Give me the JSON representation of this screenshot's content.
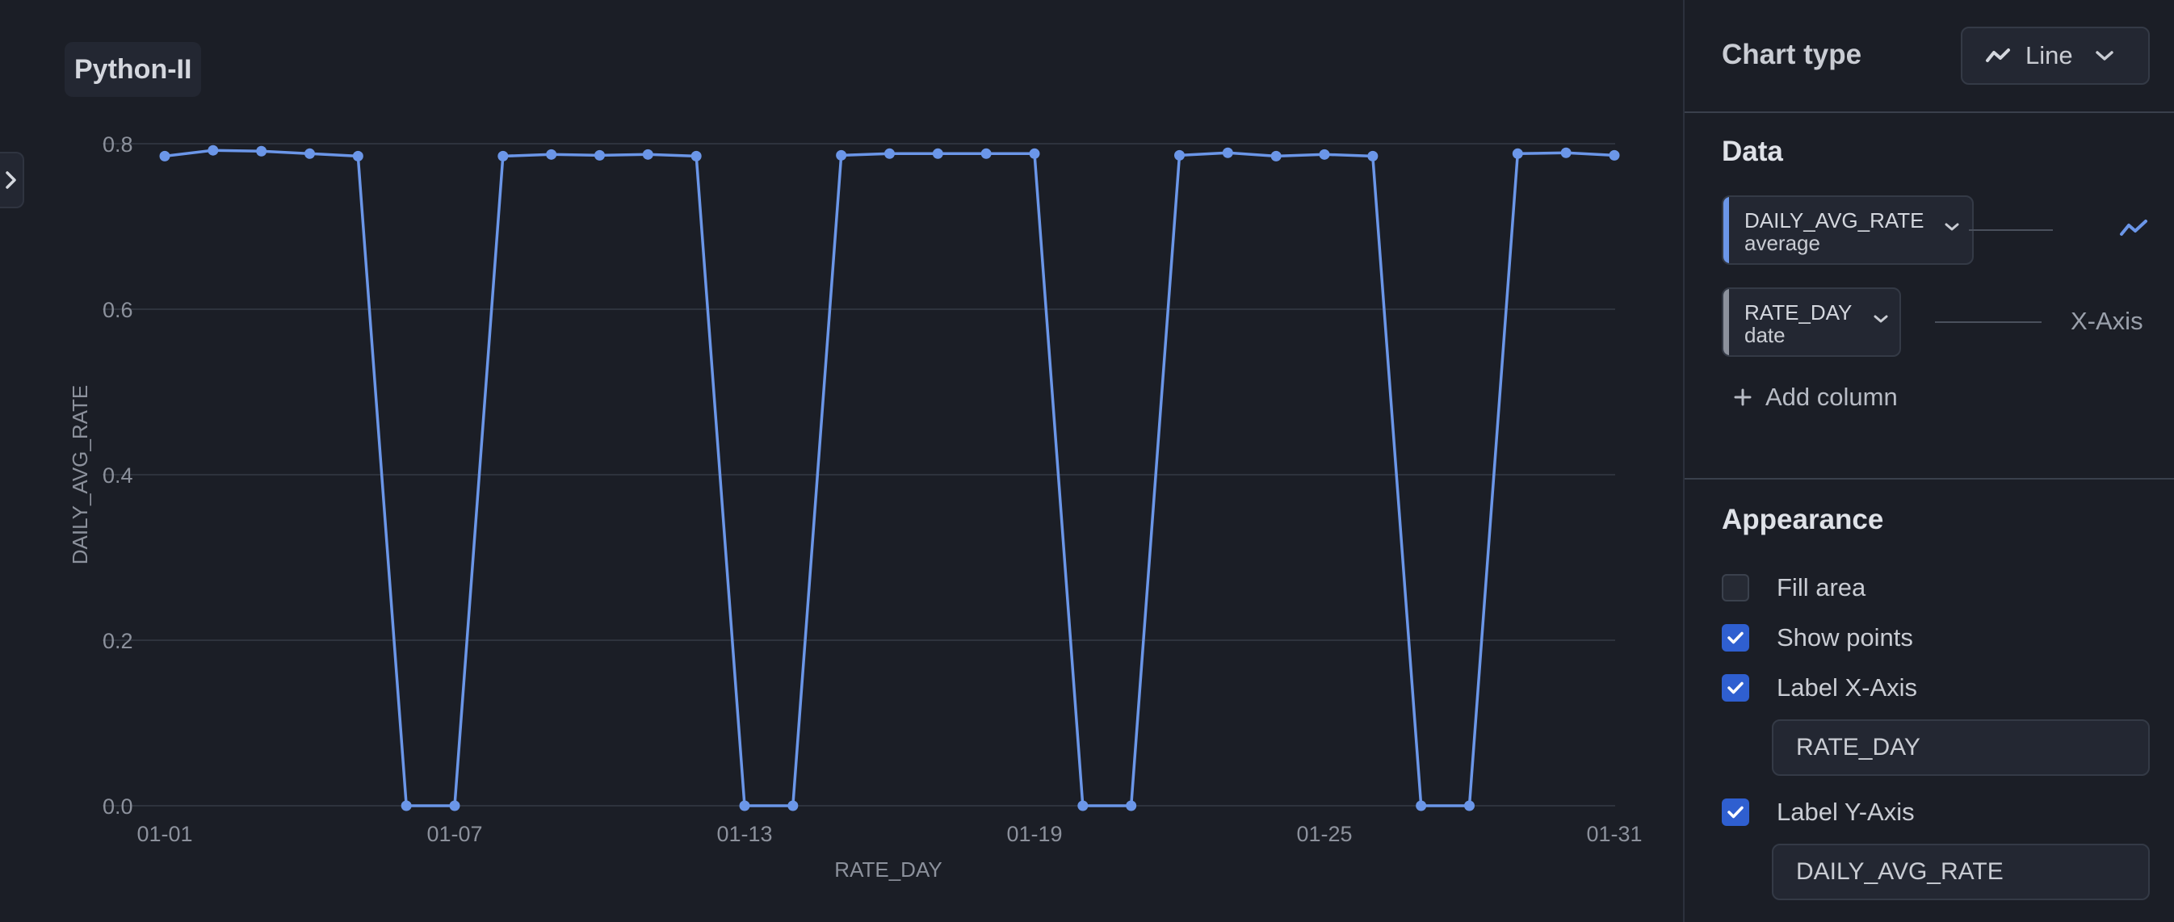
{
  "chart_title": "Python-II",
  "panel": {
    "chart_type": {
      "label": "Chart type",
      "value": "Line",
      "icon": "line-chart-icon"
    },
    "data_section": {
      "heading": "Data",
      "y_column": {
        "name": "DAILY_AVG_RATE",
        "aggregation": "average",
        "accent": "#6b96e8"
      },
      "x_column": {
        "name": "RATE_DAY",
        "aggregation": "date",
        "accent": "#8c919c"
      },
      "x_axis_label": "X-Axis",
      "add_column_label": "Add column"
    },
    "appearance": {
      "heading": "Appearance",
      "fill_area": {
        "label": "Fill area",
        "checked": false
      },
      "show_points": {
        "label": "Show points",
        "checked": true
      },
      "label_x_axis": {
        "label": "Label X-Axis",
        "checked": true,
        "value": "RATE_DAY"
      },
      "label_y_axis": {
        "label": "Label Y-Axis",
        "checked": true,
        "value": "DAILY_AVG_RATE"
      }
    }
  },
  "colors": {
    "line": "#6b96e8",
    "background": "#1b1e26",
    "checkbox": "#2f5fd0"
  },
  "chart_data": {
    "type": "line",
    "xlabel": "RATE_DAY",
    "ylabel": "DAILY_AVG_RATE",
    "ylim": [
      0,
      0.8
    ],
    "yticks": [
      "0.0",
      "0.2",
      "0.4",
      "0.6",
      "0.8"
    ],
    "xticks": [
      "01-01",
      "01-07",
      "01-13",
      "01-19",
      "01-25",
      "01-31"
    ],
    "grid": true,
    "show_points": true,
    "series": [
      {
        "x": [
          "01-01",
          "01-02",
          "01-03",
          "01-04",
          "01-05",
          "01-06",
          "01-07",
          "01-08",
          "01-09",
          "01-10",
          "01-11",
          "01-12",
          "01-13",
          "01-14",
          "01-15",
          "01-16",
          "01-17",
          "01-18",
          "01-19",
          "01-20",
          "01-21",
          "01-22",
          "01-23",
          "01-24",
          "01-25",
          "01-26",
          "01-27",
          "01-28",
          "01-29",
          "01-30",
          "01-31"
        ],
        "values": [
          0.785,
          0.792,
          0.791,
          0.788,
          0.785,
          0,
          0,
          0.785,
          0.787,
          0.786,
          0.787,
          0.785,
          0,
          0,
          0.786,
          0.788,
          0.788,
          0.788,
          0.788,
          0,
          0,
          0.786,
          0.789,
          0.785,
          0.787,
          0.785,
          0,
          0,
          0.788,
          0.789,
          0.786
        ]
      }
    ]
  }
}
